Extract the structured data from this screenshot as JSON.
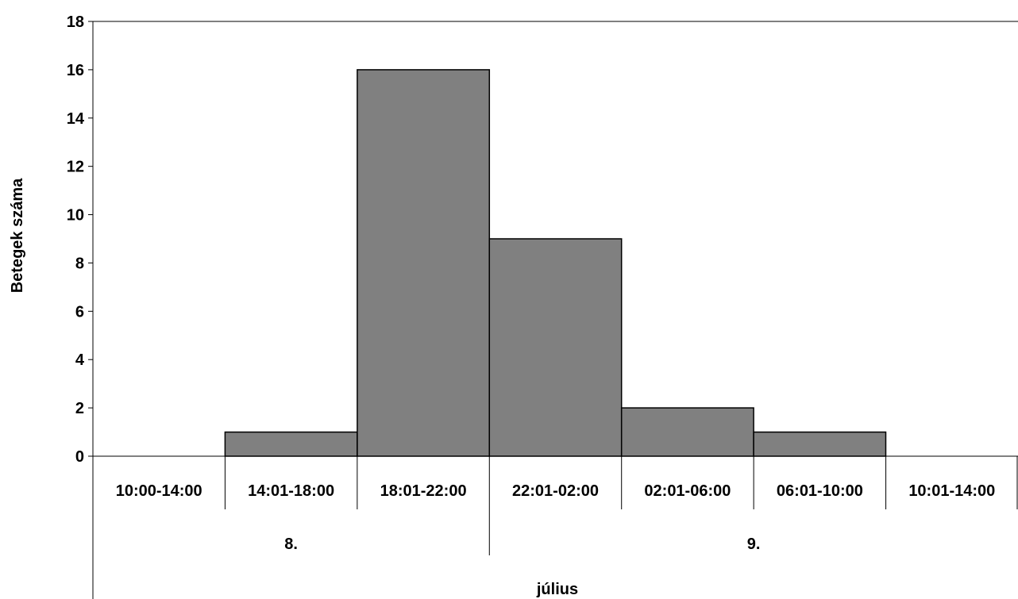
{
  "chart_data": {
    "type": "bar",
    "categories": [
      "10:00-14:00",
      "14:01-18:00",
      "18:01-22:00",
      "22:01-02:00",
      "02:01-06:00",
      "06:01-10:00",
      "10:01-14:00"
    ],
    "values": [
      0,
      1,
      16,
      9,
      2,
      1,
      0
    ],
    "groups": [
      {
        "label": "8.",
        "span": 3
      },
      {
        "label": "9.",
        "span": 4
      }
    ],
    "xlabel": "július",
    "ylabel": "Betegek száma",
    "ylim": [
      0,
      18
    ],
    "yticks": [
      "0",
      "2",
      "4",
      "6",
      "8",
      "10",
      "12",
      "14",
      "16",
      "18"
    ],
    "grid": false,
    "bar_color": "#808080"
  }
}
